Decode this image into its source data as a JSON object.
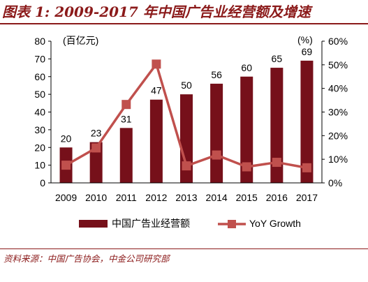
{
  "header": {
    "title": "图表 1: 2009-2017 年中国广告业经营额及增速"
  },
  "footer": {
    "source": "资料来源：中国广告协会，中金公司研究部"
  },
  "colors": {
    "bar": "#76101a",
    "line": "#c0504d",
    "brand": "#8b1a1a"
  },
  "chart_data": {
    "type": "bar",
    "title": "",
    "categories": [
      "2009",
      "2010",
      "2011",
      "2012",
      "2013",
      "2014",
      "2015",
      "2016",
      "2017"
    ],
    "series": [
      {
        "name": "中国广告业经营额",
        "type": "bar",
        "axis": "left",
        "values": [
          20,
          23,
          31,
          47,
          50,
          56,
          60,
          65,
          69
        ]
      },
      {
        "name": "YoY Growth",
        "type": "line",
        "axis": "right",
        "values": [
          0.075,
          0.148,
          0.332,
          0.503,
          0.072,
          0.118,
          0.068,
          0.087,
          0.064
        ]
      }
    ],
    "left_axis": {
      "unit": "(百亿元)",
      "ylim": [
        0,
        80
      ],
      "ticks": [
        "0",
        "10",
        "20",
        "30",
        "40",
        "50",
        "60",
        "70",
        "80"
      ]
    },
    "right_axis": {
      "unit": "(%)",
      "ylim": [
        0,
        0.6
      ],
      "ticks": [
        "0%",
        "10%",
        "20%",
        "30%",
        "40%",
        "50%",
        "60%"
      ]
    },
    "data_labels": [
      "20",
      "23",
      "31",
      "47",
      "50",
      "56",
      "60",
      "65",
      "69"
    ],
    "legend": {
      "position": "bottom",
      "items": [
        "中国广告业经营额",
        "YoY Growth"
      ]
    },
    "grid": false
  }
}
